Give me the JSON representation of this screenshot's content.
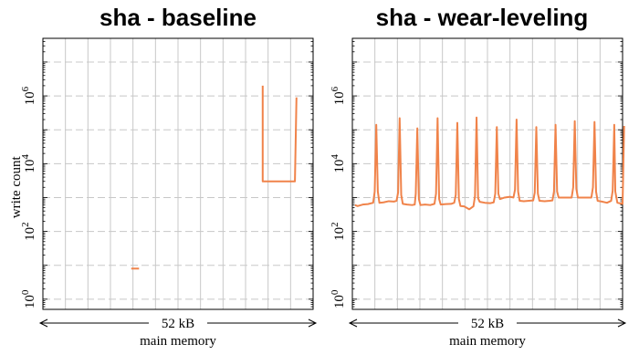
{
  "chart_data": [
    {
      "type": "line",
      "title": "sha - baseline",
      "ylabel": "write count",
      "xlabel": "main memory",
      "span_label": "52 kB",
      "yscale": "log",
      "ylim": [
        0.5,
        50000000
      ],
      "xlim": [
        0,
        52
      ],
      "y_ticks": [
        {
          "value": 1,
          "label": "10^0"
        },
        {
          "value": 100,
          "label": "10^2"
        },
        {
          "value": 10000,
          "label": "10^4"
        },
        {
          "value": 1000000,
          "label": "10^6"
        }
      ],
      "grid": true,
      "segments": [
        {
          "points": [
            [
              17.0,
              8
            ],
            [
              18.5,
              8
            ]
          ]
        },
        {
          "points": [
            [
              42.0,
              20000
            ],
            [
              42.0,
              20000
            ]
          ]
        },
        {
          "points": [
            [
              42.3,
              2000000
            ],
            [
              42.3,
              3000
            ],
            [
              48.5,
              3000
            ],
            [
              48.5,
              3000
            ],
            [
              48.8,
              900000
            ]
          ]
        }
      ]
    },
    {
      "type": "line",
      "title": "sha - wear-leveling",
      "xlabel": "main memory",
      "span_label": "52 kB",
      "yscale": "log",
      "ylim": [
        0.5,
        50000000
      ],
      "xlim": [
        0,
        52
      ],
      "y_ticks": [
        {
          "value": 1,
          "label": "10^0"
        },
        {
          "value": 100,
          "label": "10^2"
        },
        {
          "value": 10000,
          "label": "10^4"
        },
        {
          "value": 1000000,
          "label": "10^6"
        }
      ],
      "grid": true,
      "segments": [
        {
          "points": [
            [
              0.5,
              600
            ],
            [
              1.0,
              560
            ],
            [
              2.0,
              620
            ],
            [
              3.0,
              640
            ],
            [
              4.0,
              700
            ],
            [
              4.3,
              1500
            ],
            [
              4.6,
              140000
            ],
            [
              4.9,
              1500
            ],
            [
              5.2,
              700
            ],
            [
              6.0,
              720
            ],
            [
              7.0,
              780
            ],
            [
              8.0,
              760
            ],
            [
              8.5,
              800
            ],
            [
              8.8,
              1400
            ],
            [
              9.1,
              220000
            ],
            [
              9.4,
              1200
            ],
            [
              9.7,
              650
            ],
            [
              10.5,
              620
            ],
            [
              11.5,
              600
            ],
            [
              12.0,
              620
            ],
            [
              12.2,
              1300
            ],
            [
              12.5,
              110000
            ],
            [
              12.8,
              900
            ],
            [
              13.1,
              600
            ],
            [
              14.0,
              620
            ],
            [
              15.0,
              600
            ],
            [
              15.8,
              650
            ],
            [
              16.1,
              1300
            ],
            [
              16.4,
              220000
            ],
            [
              16.7,
              900
            ],
            [
              17.0,
              620
            ],
            [
              18.0,
              640
            ],
            [
              19.0,
              650
            ],
            [
              19.6,
              700
            ],
            [
              19.9,
              1200
            ],
            [
              20.2,
              160000
            ],
            [
              20.5,
              900
            ],
            [
              20.8,
              560
            ],
            [
              21.5,
              550
            ],
            [
              22.5,
              450
            ],
            [
              23.3,
              550
            ],
            [
              23.6,
              1100
            ],
            [
              23.9,
              230000
            ],
            [
              24.2,
              950
            ],
            [
              24.5,
              750
            ],
            [
              25.5,
              700
            ],
            [
              26.5,
              680
            ],
            [
              27.2,
              720
            ],
            [
              27.5,
              1300
            ],
            [
              27.8,
              120000
            ],
            [
              28.1,
              1300
            ],
            [
              28.4,
              900
            ],
            [
              29.3,
              1000
            ],
            [
              30.3,
              1050
            ],
            [
              31.0,
              1000
            ],
            [
              31.3,
              1700
            ],
            [
              31.6,
              200000
            ],
            [
              31.9,
              1500
            ],
            [
              32.2,
              800
            ],
            [
              33.0,
              780
            ],
            [
              34.0,
              800
            ],
            [
              34.8,
              820
            ],
            [
              35.1,
              1400
            ],
            [
              35.4,
              120000
            ],
            [
              35.7,
              1300
            ],
            [
              36.0,
              800
            ],
            [
              37.0,
              780
            ],
            [
              38.0,
              800
            ],
            [
              38.5,
              820
            ],
            [
              38.8,
              1500
            ],
            [
              39.1,
              140000
            ],
            [
              39.4,
              1500
            ],
            [
              39.7,
              1000
            ],
            [
              40.5,
              1000
            ],
            [
              41.5,
              1000
            ],
            [
              42.2,
              1000
            ],
            [
              42.5,
              2000
            ],
            [
              42.8,
              180000
            ],
            [
              43.1,
              1800
            ],
            [
              43.4,
              1000
            ],
            [
              44.5,
              1000
            ],
            [
              45.5,
              1000
            ],
            [
              46.0,
              1000
            ],
            [
              46.3,
              2000
            ],
            [
              46.6,
              170000
            ],
            [
              46.9,
              1500
            ],
            [
              47.2,
              800
            ],
            [
              48.0,
              760
            ],
            [
              49.0,
              700
            ],
            [
              49.8,
              800
            ],
            [
              50.1,
              1600
            ],
            [
              50.4,
              140000
            ],
            [
              50.6,
              1500
            ],
            [
              51.0,
              700
            ],
            [
              52.0,
              650
            ],
            [
              52.3,
              130000
            ]
          ]
        }
      ]
    }
  ]
}
